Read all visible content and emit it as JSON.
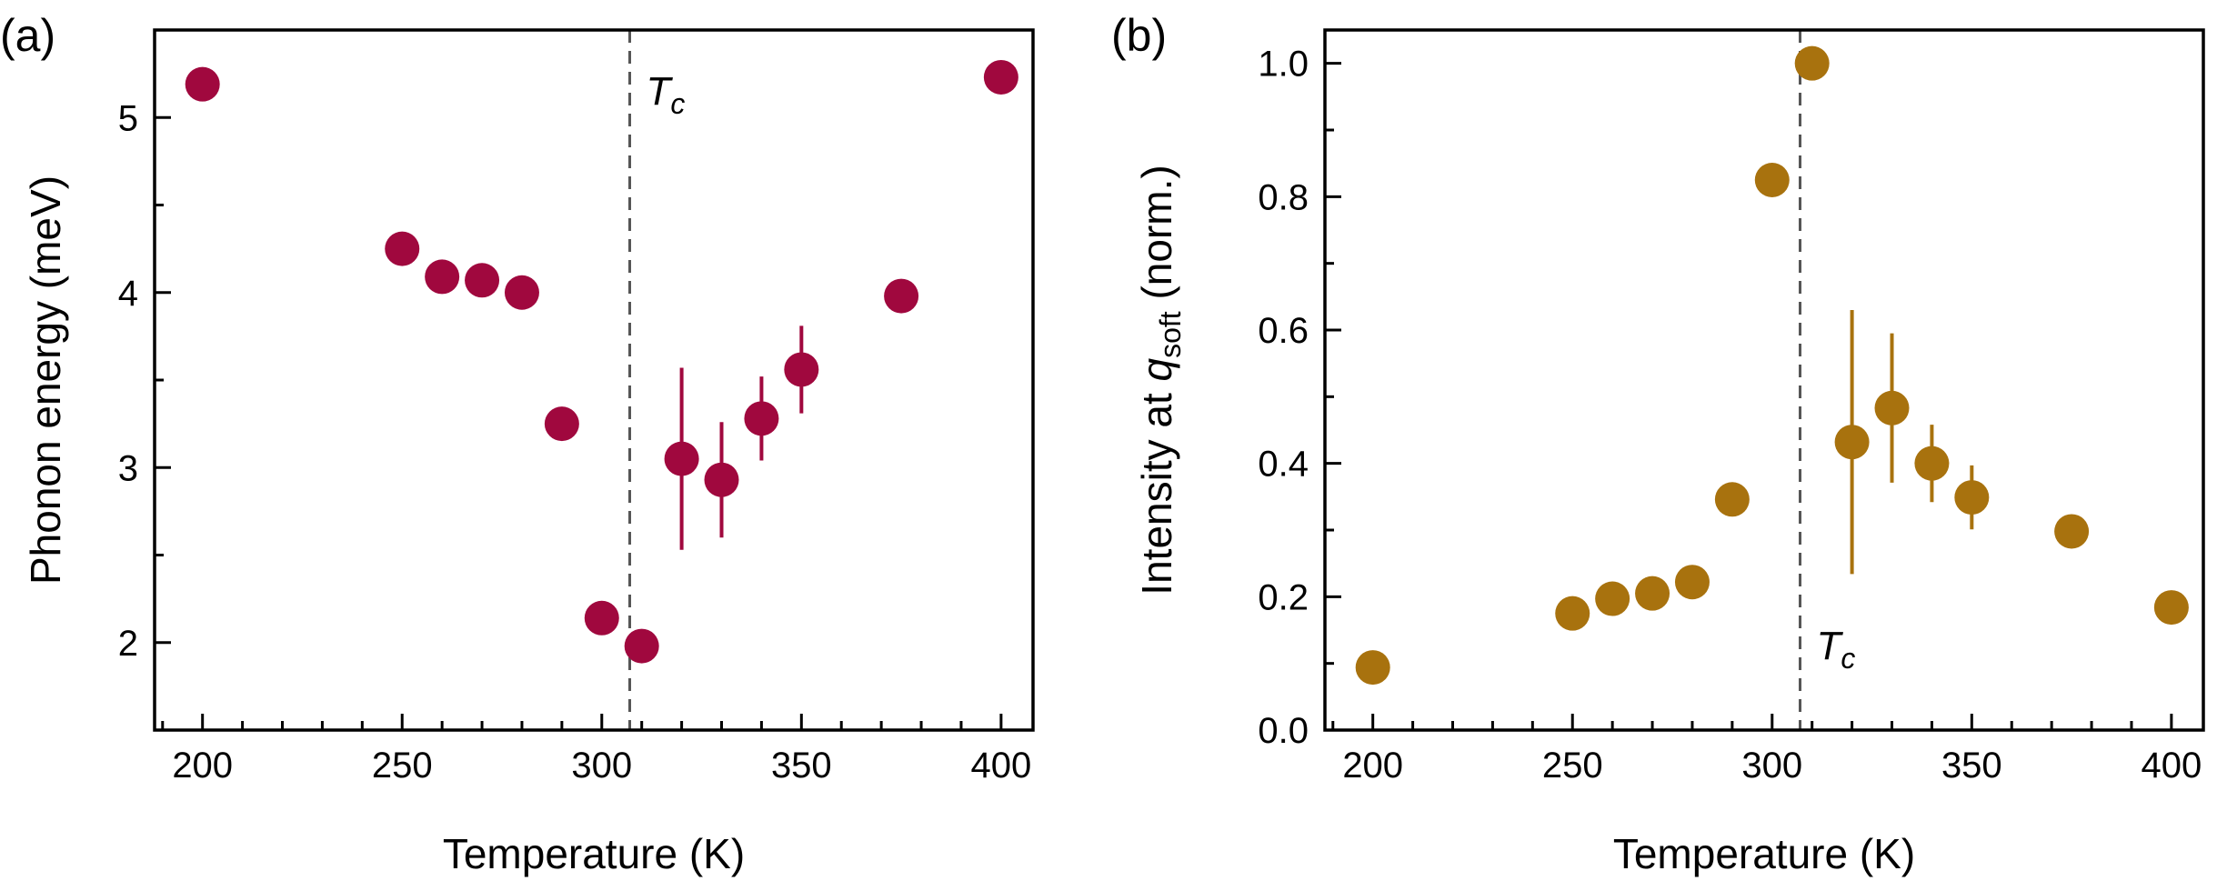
{
  "chart_data": [
    {
      "type": "scatter",
      "panel_label": "(a)",
      "xlabel": "Temperature (K)",
      "ylabel": "Phonon energy (meV)",
      "xlim": [
        188,
        408
      ],
      "ylim": [
        1.5,
        5.5
      ],
      "xticks": [
        200,
        250,
        300,
        350,
        400
      ],
      "yticks": [
        2,
        3,
        4,
        5
      ],
      "marker_color": "#A0083E",
      "vline": {
        "x": 307,
        "label_main": "T",
        "label_sub": "c",
        "label_anchor": "top-right"
      },
      "series": [
        {
          "name": "Phonon energy",
          "x": [
            200,
            250,
            260,
            270,
            280,
            290,
            300,
            310,
            320,
            330,
            340,
            350,
            375,
            400
          ],
          "y": [
            5.19,
            4.25,
            4.09,
            4.07,
            4.0,
            3.25,
            2.14,
            1.98,
            3.05,
            2.93,
            3.28,
            3.56,
            3.98,
            5.23
          ],
          "err": [
            0,
            0,
            0,
            0,
            0,
            0,
            0,
            0,
            0.52,
            0.33,
            0.24,
            0.25,
            0,
            0
          ]
        }
      ]
    },
    {
      "type": "scatter",
      "panel_label": "(b)",
      "xlabel": "Temperature (K)",
      "ylabel_main": "Intensity at ",
      "ylabel_q": "q",
      "ylabel_sub": "soft",
      "ylabel_tail": " (norm.)",
      "xlim": [
        188,
        408
      ],
      "ylim": [
        0.0,
        1.05
      ],
      "xticks": [
        200,
        250,
        300,
        350,
        400
      ],
      "yticks": [
        "0.0",
        "0.2",
        "0.4",
        "0.6",
        "0.8",
        "1.0"
      ],
      "marker_color": "#A8720E",
      "vline": {
        "x": 307,
        "label_main": "T",
        "label_sub": "c",
        "label_anchor": "bottom-right"
      },
      "series": [
        {
          "name": "Intensity at q_soft",
          "x": [
            200,
            250,
            260,
            270,
            280,
            290,
            300,
            310,
            320,
            330,
            340,
            350,
            375,
            400
          ],
          "y": [
            0.094,
            0.175,
            0.197,
            0.205,
            0.222,
            0.346,
            0.825,
            1.0,
            0.432,
            0.483,
            0.4,
            0.349,
            0.298,
            0.184
          ],
          "err": [
            0,
            0,
            0,
            0,
            0,
            0,
            0,
            0,
            0.198,
            0.112,
            0.058,
            0.048,
            0,
            0
          ]
        }
      ]
    }
  ]
}
